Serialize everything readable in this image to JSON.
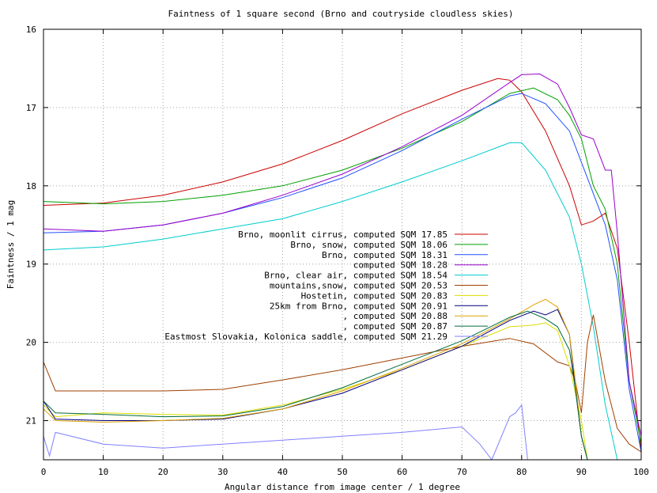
{
  "chart_data": {
    "type": "line",
    "title": "Faintness of 1 square second (Brno and coutryside cloudless skies)",
    "xlabel": "Angular distance from image center / 1 degree",
    "ylabel": "Faintness / 1 mag",
    "xlim": [
      0,
      100
    ],
    "ylim": [
      16,
      21.5
    ],
    "y_inverted": true,
    "x_ticks": [
      "0",
      "10",
      "20",
      "30",
      "40",
      "50",
      "60",
      "70",
      "80",
      "90",
      "100"
    ],
    "y_ticks": [
      "16",
      "17",
      "18",
      "19",
      "20",
      "21"
    ],
    "grid": true,
    "legend_position": "center-right",
    "series": [
      {
        "name": "Brno, moonlit cirrus, computed SQM 17.85",
        "color": "#cc0000",
        "x": [
          0,
          10,
          20,
          30,
          40,
          50,
          60,
          70,
          76,
          78,
          80,
          84,
          88,
          90,
          92,
          94,
          96,
          98,
          100
        ],
        "y": [
          18.25,
          18.22,
          18.12,
          17.95,
          17.72,
          17.42,
          17.08,
          16.78,
          16.63,
          16.65,
          16.8,
          17.3,
          18.0,
          18.5,
          18.45,
          18.35,
          18.8,
          20.0,
          21.4
        ]
      },
      {
        "name": "Brno, snow, computed SQM 18.06",
        "color": "#00a000",
        "x": [
          0,
          10,
          20,
          30,
          40,
          50,
          60,
          70,
          78,
          82,
          86,
          88,
          90,
          92,
          94,
          96,
          98,
          100
        ],
        "y": [
          18.2,
          18.23,
          18.2,
          18.12,
          18.0,
          17.8,
          17.52,
          17.18,
          16.82,
          16.75,
          16.9,
          17.1,
          17.4,
          18.0,
          18.3,
          19.0,
          20.5,
          21.3
        ]
      },
      {
        "name": "Brno, computed SQM 18.31",
        "color": "#2050ff",
        "x": [
          0,
          10,
          20,
          30,
          40,
          50,
          60,
          70,
          78,
          80,
          84,
          88,
          90,
          92,
          94,
          96,
          98,
          100
        ],
        "y": [
          18.6,
          18.58,
          18.5,
          18.35,
          18.15,
          17.9,
          17.55,
          17.15,
          16.85,
          16.82,
          16.95,
          17.3,
          17.7,
          18.1,
          18.5,
          19.2,
          20.6,
          21.4
        ]
      },
      {
        "name": "computed SQM 18.28",
        "color": "#9900cc",
        "x": [
          0,
          10,
          20,
          30,
          40,
          50,
          60,
          70,
          78,
          80,
          83,
          86,
          88,
          90,
          92,
          94,
          95,
          96,
          98,
          100
        ],
        "y": [
          18.55,
          18.58,
          18.5,
          18.35,
          18.12,
          17.85,
          17.5,
          17.1,
          16.68,
          16.58,
          16.57,
          16.7,
          17.0,
          17.35,
          17.4,
          17.8,
          17.8,
          18.6,
          20.5,
          21.2
        ]
      },
      {
        "name": "Brno, clear air, computed SQM 18.54",
        "color": "#00cccc",
        "x": [
          0,
          10,
          20,
          30,
          40,
          50,
          60,
          70,
          78,
          80,
          84,
          88,
          90,
          92,
          94,
          96
        ],
        "y": [
          18.82,
          18.78,
          18.68,
          18.55,
          18.42,
          18.2,
          17.95,
          17.68,
          17.45,
          17.45,
          17.8,
          18.4,
          19.0,
          19.8,
          20.8,
          21.5
        ]
      },
      {
        "name": "mountains,snow, computed SQM 20.53",
        "color": "#a04000",
        "x": [
          0,
          2,
          10,
          20,
          30,
          40,
          50,
          60,
          70,
          78,
          82,
          86,
          88,
          89,
          90,
          91,
          92,
          94,
          96,
          98,
          100
        ],
        "y": [
          20.25,
          20.62,
          20.62,
          20.62,
          20.6,
          20.48,
          20.35,
          20.2,
          20.05,
          19.95,
          20.02,
          20.25,
          20.3,
          20.5,
          20.9,
          20.0,
          19.65,
          20.5,
          21.1,
          21.3,
          21.4
        ]
      },
      {
        "name": "Hostetin, computed SQM 20.83",
        "color": "#dddd00",
        "x": [
          0,
          2,
          10,
          20,
          30,
          40,
          50,
          60,
          70,
          78,
          82,
          84,
          86,
          88,
          90,
          91
        ],
        "y": [
          20.8,
          20.95,
          20.9,
          20.92,
          20.93,
          20.8,
          20.6,
          20.35,
          20.05,
          19.8,
          19.78,
          19.75,
          19.85,
          20.3,
          21.0,
          21.5
        ]
      },
      {
        "name": "25km from Brno, computed SQM 20.91",
        "color": "#000080",
        "x": [
          0,
          2,
          10,
          20,
          30,
          40,
          50,
          60,
          70,
          78,
          82,
          84,
          86,
          88,
          89,
          90,
          91
        ],
        "y": [
          20.75,
          20.98,
          21.0,
          21.0,
          20.98,
          20.85,
          20.65,
          20.35,
          20.05,
          19.72,
          19.6,
          19.65,
          19.58,
          19.9,
          20.6,
          21.2,
          21.5
        ]
      },
      {
        "name": ", computed SQM 20.88",
        "color": "#e0a000",
        "x": [
          0,
          2,
          10,
          20,
          30,
          40,
          50,
          60,
          70,
          78,
          82,
          84,
          86,
          88,
          89,
          90,
          91
        ],
        "y": [
          20.85,
          21.0,
          21.02,
          21.0,
          20.97,
          20.85,
          20.62,
          20.33,
          20.02,
          19.7,
          19.52,
          19.45,
          19.55,
          19.9,
          20.5,
          21.2,
          21.5
        ]
      },
      {
        "name": ", computed SQM 20.87",
        "color": "#006b3c",
        "x": [
          0,
          2,
          10,
          20,
          30,
          40,
          50,
          60,
          70,
          78,
          81,
          84,
          86,
          88,
          89,
          90,
          91
        ],
        "y": [
          20.75,
          20.9,
          20.92,
          20.95,
          20.94,
          20.82,
          20.58,
          20.28,
          19.98,
          19.68,
          19.6,
          19.7,
          19.8,
          20.1,
          20.6,
          21.2,
          21.5
        ]
      },
      {
        "name": "Eastmost Slovakia, Kolonica saddle, computed SQM 21.29",
        "color": "#8080ff",
        "x": [
          0,
          1,
          2,
          10,
          20,
          30,
          40,
          50,
          60,
          70,
          73,
          75,
          78,
          79,
          80,
          81
        ],
        "y": [
          21.2,
          21.45,
          21.15,
          21.3,
          21.35,
          21.3,
          21.25,
          21.2,
          21.15,
          21.08,
          21.3,
          21.5,
          20.95,
          20.9,
          20.8,
          21.5
        ]
      }
    ]
  }
}
